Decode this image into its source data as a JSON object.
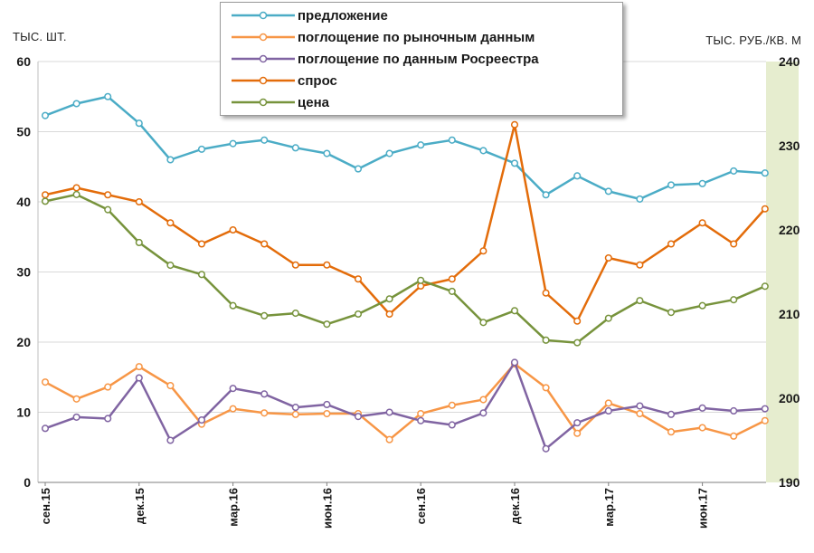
{
  "chart_data": {
    "type": "line",
    "left_axis_title": "ТЫС. ШТ.",
    "right_axis_title": "ТЫС. РУБ./КВ. М",
    "left_ylim": [
      0,
      60
    ],
    "left_ticks": [
      "0",
      "10",
      "20",
      "30",
      "40",
      "50",
      "60"
    ],
    "right_ylim": [
      190,
      240
    ],
    "right_ticks": [
      "190",
      "200",
      "210",
      "220",
      "230",
      "240"
    ],
    "x_tick_labels": [
      {
        "index": 0,
        "label": "сен.15"
      },
      {
        "index": 3,
        "label": "дек.15"
      },
      {
        "index": 6,
        "label": "мар.16"
      },
      {
        "index": 9,
        "label": "июн.16"
      },
      {
        "index": 12,
        "label": "сен.16"
      },
      {
        "index": 15,
        "label": "дек.16"
      },
      {
        "index": 18,
        "label": "мар.17"
      },
      {
        "index": 21,
        "label": "июн.17"
      }
    ],
    "x": [
      "сен.15",
      "окт.15",
      "ноя.15",
      "дек.15",
      "янв.16",
      "фев.16",
      "мар.16",
      "апр.16",
      "май.16",
      "июн.16",
      "июл.16",
      "авг.16",
      "сен.16",
      "окт.16",
      "ноя.16",
      "дек.16",
      "янв.17",
      "фев.17",
      "мар.17",
      "апр.17",
      "май.17",
      "июн.17",
      "июл.17",
      "авг.17"
    ],
    "grid": true,
    "legend_position": "top-center",
    "series": [
      {
        "name": "предложение",
        "axis": "left",
        "color": "#4BACC6",
        "values": [
          52.3,
          54.0,
          55.0,
          51.2,
          46.0,
          47.5,
          48.3,
          48.8,
          47.7,
          46.9,
          44.7,
          46.9,
          48.1,
          48.8,
          47.3,
          45.5,
          41.0,
          43.7,
          41.5,
          40.4,
          42.4,
          42.6,
          44.4,
          44.1
        ]
      },
      {
        "name": "поглощение по рыночным данным",
        "axis": "left",
        "color": "#F79646",
        "values": [
          14.3,
          11.9,
          13.6,
          16.5,
          13.8,
          8.3,
          10.5,
          9.9,
          9.7,
          9.8,
          9.8,
          6.1,
          9.8,
          11.0,
          11.8,
          16.9,
          13.5,
          7.0,
          11.3,
          9.8,
          7.2,
          7.8,
          6.6,
          8.8
        ]
      },
      {
        "name": "поглощение по данным Росреестра",
        "axis": "left",
        "color": "#8064A2",
        "values": [
          7.7,
          9.3,
          9.1,
          14.9,
          6.0,
          8.9,
          13.4,
          12.6,
          10.7,
          11.1,
          9.4,
          10.0,
          8.8,
          8.2,
          9.9,
          17.1,
          4.8,
          8.5,
          10.2,
          10.9,
          9.7,
          10.6,
          10.2,
          10.5
        ]
      },
      {
        "name": "спрос",
        "axis": "left",
        "color": "#E36C0A",
        "values": [
          41.0,
          42.0,
          41.0,
          40.0,
          37.0,
          34.0,
          36.0,
          34.0,
          31.0,
          31.0,
          29.0,
          24.0,
          28.0,
          29.0,
          33.0,
          51.0,
          27.0,
          23.0,
          32.0,
          31.0,
          34.0,
          37.0,
          34.0,
          39.0
        ]
      },
      {
        "name": "цена",
        "axis": "right",
        "color": "#77933C",
        "values": [
          223.4,
          224.2,
          222.4,
          218.5,
          215.8,
          214.7,
          211.0,
          209.8,
          210.1,
          208.8,
          210.0,
          211.8,
          214.0,
          212.7,
          209.0,
          210.4,
          206.9,
          206.6,
          209.5,
          211.6,
          210.2,
          211.0,
          211.7,
          213.3
        ]
      }
    ]
  }
}
